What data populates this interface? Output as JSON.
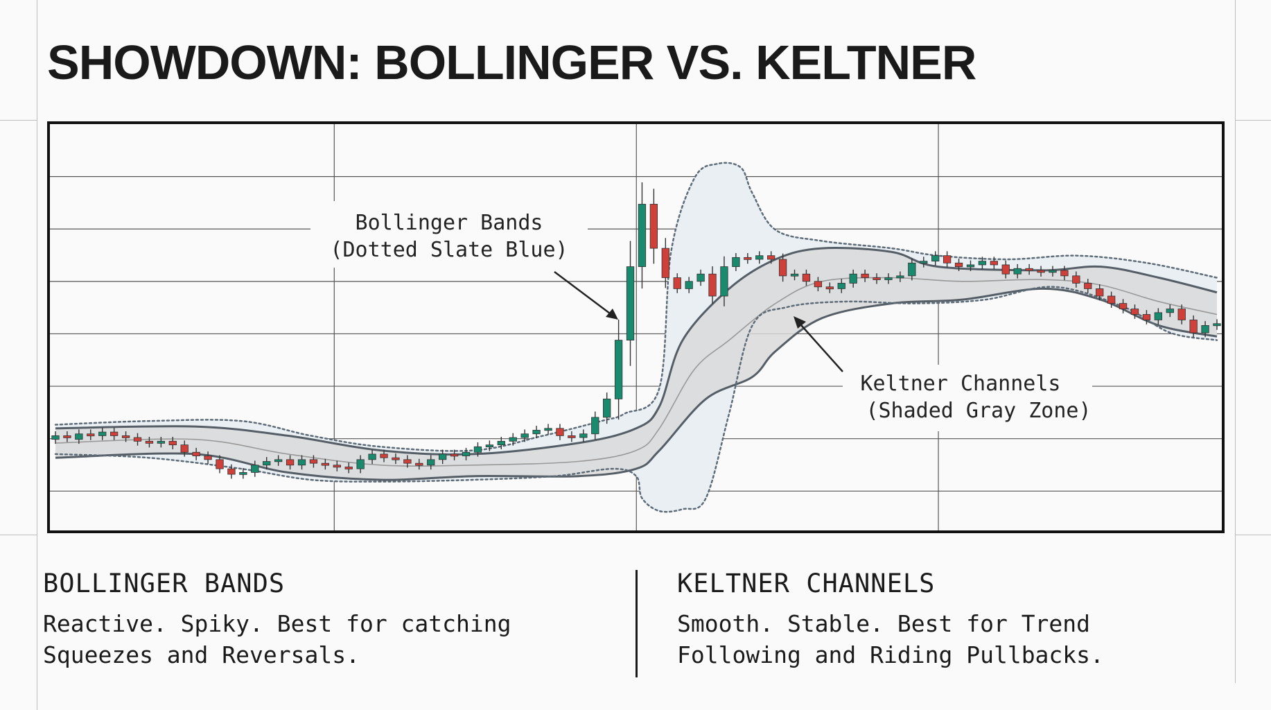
{
  "title": "SHOWDOWN: BOLLINGER VS. KELTNER",
  "annotations": {
    "bollinger": [
      "Bollinger Bands",
      "(Dotted Slate Blue)"
    ],
    "keltner": [
      "Keltner Channels",
      "(Shaded Gray Zone)"
    ]
  },
  "columns": {
    "left": {
      "heading": "BOLLINGER BANDS",
      "body": "Reactive. Spiky. Best for catching\nSqueezes and Reversals."
    },
    "right": {
      "heading": "KELTNER CHANNELS",
      "body": "Smooth. Stable. Best for Trend\nFollowing and Riding Pullbacks."
    }
  },
  "colors": {
    "up": "#1a8a6e",
    "down": "#d0403a",
    "keltner_fill": "#d9d9d9",
    "keltner_edge": "#555e66",
    "bollinger": "#5d6b78",
    "bollinger_fill": "#e9eff3",
    "grid": "#555555"
  },
  "chart_data": {
    "type": "candlestick",
    "grid": true,
    "candles": [
      {
        "o": 0.21,
        "c": 0.22
      },
      {
        "o": 0.22,
        "c": 0.215
      },
      {
        "o": 0.21,
        "c": 0.225
      },
      {
        "o": 0.225,
        "c": 0.22
      },
      {
        "o": 0.22,
        "c": 0.23
      },
      {
        "o": 0.23,
        "c": 0.22
      },
      {
        "o": 0.22,
        "c": 0.215
      },
      {
        "o": 0.215,
        "c": 0.205
      },
      {
        "o": 0.205,
        "c": 0.2
      },
      {
        "o": 0.2,
        "c": 0.205
      },
      {
        "o": 0.205,
        "c": 0.195
      },
      {
        "o": 0.195,
        "c": 0.175
      },
      {
        "o": 0.175,
        "c": 0.165
      },
      {
        "o": 0.165,
        "c": 0.155
      },
      {
        "o": 0.155,
        "c": 0.13
      },
      {
        "o": 0.13,
        "c": 0.115
      },
      {
        "o": 0.115,
        "c": 0.12
      },
      {
        "o": 0.12,
        "c": 0.14
      },
      {
        "o": 0.14,
        "c": 0.15
      },
      {
        "o": 0.15,
        "c": 0.155
      },
      {
        "o": 0.155,
        "c": 0.14
      },
      {
        "o": 0.14,
        "c": 0.155
      },
      {
        "o": 0.155,
        "c": 0.145
      },
      {
        "o": 0.145,
        "c": 0.14
      },
      {
        "o": 0.14,
        "c": 0.135
      },
      {
        "o": 0.135,
        "c": 0.13
      },
      {
        "o": 0.13,
        "c": 0.155
      },
      {
        "o": 0.155,
        "c": 0.17
      },
      {
        "o": 0.17,
        "c": 0.16
      },
      {
        "o": 0.16,
        "c": 0.155
      },
      {
        "o": 0.155,
        "c": 0.145
      },
      {
        "o": 0.145,
        "c": 0.14
      },
      {
        "o": 0.14,
        "c": 0.155
      },
      {
        "o": 0.155,
        "c": 0.17
      },
      {
        "o": 0.17,
        "c": 0.165
      },
      {
        "o": 0.165,
        "c": 0.175
      },
      {
        "o": 0.175,
        "c": 0.19
      },
      {
        "o": 0.19,
        "c": 0.195
      },
      {
        "o": 0.195,
        "c": 0.205
      },
      {
        "o": 0.205,
        "c": 0.215
      },
      {
        "o": 0.215,
        "c": 0.225
      },
      {
        "o": 0.225,
        "c": 0.235
      },
      {
        "o": 0.235,
        "c": 0.24
      },
      {
        "o": 0.24,
        "c": 0.22
      },
      {
        "o": 0.22,
        "c": 0.215
      },
      {
        "o": 0.215,
        "c": 0.225
      },
      {
        "o": 0.225,
        "c": 0.27
      },
      {
        "o": 0.27,
        "c": 0.32
      },
      {
        "o": 0.32,
        "c": 0.48
      },
      {
        "o": 0.48,
        "c": 0.68
      },
      {
        "o": 0.68,
        "c": 0.85
      },
      {
        "o": 0.85,
        "c": 0.73
      },
      {
        "o": 0.73,
        "c": 0.65
      },
      {
        "o": 0.65,
        "c": 0.62
      },
      {
        "o": 0.62,
        "c": 0.64
      },
      {
        "o": 0.64,
        "c": 0.66
      },
      {
        "o": 0.66,
        "c": 0.6
      },
      {
        "o": 0.6,
        "c": 0.68
      },
      {
        "o": 0.68,
        "c": 0.705
      },
      {
        "o": 0.705,
        "c": 0.7
      },
      {
        "o": 0.7,
        "c": 0.71
      },
      {
        "o": 0.71,
        "c": 0.7
      },
      {
        "o": 0.7,
        "c": 0.655
      },
      {
        "o": 0.655,
        "c": 0.66
      },
      {
        "o": 0.66,
        "c": 0.64
      },
      {
        "o": 0.64,
        "c": 0.625
      },
      {
        "o": 0.625,
        "c": 0.62
      },
      {
        "o": 0.62,
        "c": 0.635
      },
      {
        "o": 0.635,
        "c": 0.66
      },
      {
        "o": 0.66,
        "c": 0.65
      },
      {
        "o": 0.65,
        "c": 0.645
      },
      {
        "o": 0.645,
        "c": 0.65
      },
      {
        "o": 0.65,
        "c": 0.655
      },
      {
        "o": 0.655,
        "c": 0.69
      },
      {
        "o": 0.69,
        "c": 0.695
      },
      {
        "o": 0.695,
        "c": 0.71
      },
      {
        "o": 0.71,
        "c": 0.69
      },
      {
        "o": 0.69,
        "c": 0.68
      },
      {
        "o": 0.68,
        "c": 0.685
      },
      {
        "o": 0.685,
        "c": 0.695
      },
      {
        "o": 0.695,
        "c": 0.685
      },
      {
        "o": 0.685,
        "c": 0.66
      },
      {
        "o": 0.66,
        "c": 0.675
      },
      {
        "o": 0.675,
        "c": 0.67
      },
      {
        "o": 0.67,
        "c": 0.665
      },
      {
        "o": 0.665,
        "c": 0.67
      },
      {
        "o": 0.67,
        "c": 0.655
      },
      {
        "o": 0.655,
        "c": 0.635
      },
      {
        "o": 0.635,
        "c": 0.62
      },
      {
        "o": 0.62,
        "c": 0.6
      },
      {
        "o": 0.6,
        "c": 0.58
      },
      {
        "o": 0.58,
        "c": 0.565
      },
      {
        "o": 0.565,
        "c": 0.55
      },
      {
        "o": 0.55,
        "c": 0.535
      },
      {
        "o": 0.535,
        "c": 0.555
      },
      {
        "o": 0.555,
        "c": 0.565
      },
      {
        "o": 0.565,
        "c": 0.535
      },
      {
        "o": 0.535,
        "c": 0.5
      },
      {
        "o": 0.5,
        "c": 0.52
      },
      {
        "o": 0.52,
        "c": 0.525
      }
    ],
    "keltner": {
      "upper": [
        [
          0,
          0.24
        ],
        [
          0.12,
          0.245
        ],
        [
          0.2,
          0.22
        ],
        [
          0.28,
          0.18
        ],
        [
          0.36,
          0.17
        ],
        [
          0.45,
          0.2
        ],
        [
          0.5,
          0.24
        ],
        [
          0.52,
          0.3
        ],
        [
          0.54,
          0.48
        ],
        [
          0.58,
          0.62
        ],
        [
          0.62,
          0.7
        ],
        [
          0.66,
          0.73
        ],
        [
          0.72,
          0.72
        ],
        [
          0.76,
          0.68
        ],
        [
          0.85,
          0.67
        ],
        [
          0.9,
          0.68
        ],
        [
          0.95,
          0.65
        ],
        [
          1,
          0.61
        ]
      ],
      "lower": [
        [
          0,
          0.16
        ],
        [
          0.12,
          0.17
        ],
        [
          0.2,
          0.12
        ],
        [
          0.28,
          0.1
        ],
        [
          0.36,
          0.11
        ],
        [
          0.45,
          0.11
        ],
        [
          0.5,
          0.13
        ],
        [
          0.52,
          0.18
        ],
        [
          0.56,
          0.32
        ],
        [
          0.6,
          0.38
        ],
        [
          0.62,
          0.45
        ],
        [
          0.66,
          0.54
        ],
        [
          0.72,
          0.58
        ],
        [
          0.78,
          0.59
        ],
        [
          0.85,
          0.62
        ],
        [
          0.9,
          0.59
        ],
        [
          0.95,
          0.52
        ],
        [
          1,
          0.49
        ]
      ],
      "middle": [
        [
          0,
          0.2
        ],
        [
          0.12,
          0.21
        ],
        [
          0.2,
          0.17
        ],
        [
          0.28,
          0.14
        ],
        [
          0.36,
          0.14
        ],
        [
          0.45,
          0.15
        ],
        [
          0.5,
          0.18
        ],
        [
          0.52,
          0.24
        ],
        [
          0.55,
          0.4
        ],
        [
          0.58,
          0.48
        ],
        [
          0.62,
          0.58
        ],
        [
          0.66,
          0.64
        ],
        [
          0.72,
          0.65
        ],
        [
          0.78,
          0.64
        ],
        [
          0.85,
          0.645
        ],
        [
          0.9,
          0.63
        ],
        [
          0.95,
          0.585
        ],
        [
          1,
          0.55
        ]
      ]
    },
    "bollinger": {
      "upper": [
        [
          0,
          0.25
        ],
        [
          0.08,
          0.26
        ],
        [
          0.16,
          0.26
        ],
        [
          0.22,
          0.22
        ],
        [
          0.28,
          0.19
        ],
        [
          0.36,
          0.18
        ],
        [
          0.42,
          0.22
        ],
        [
          0.47,
          0.26
        ],
        [
          0.49,
          0.28
        ],
        [
          0.52,
          0.35
        ],
        [
          0.53,
          0.72
        ],
        [
          0.55,
          0.92
        ],
        [
          0.57,
          0.96
        ],
        [
          0.59,
          0.95
        ],
        [
          0.6,
          0.88
        ],
        [
          0.62,
          0.78
        ],
        [
          0.66,
          0.75
        ],
        [
          0.72,
          0.73
        ],
        [
          0.76,
          0.71
        ],
        [
          0.82,
          0.7
        ],
        [
          0.88,
          0.71
        ],
        [
          0.94,
          0.69
        ],
        [
          1,
          0.65
        ]
      ],
      "lower": [
        [
          0,
          0.17
        ],
        [
          0.08,
          0.16
        ],
        [
          0.16,
          0.13
        ],
        [
          0.22,
          0.1
        ],
        [
          0.28,
          0.095
        ],
        [
          0.36,
          0.1
        ],
        [
          0.43,
          0.11
        ],
        [
          0.48,
          0.13
        ],
        [
          0.5,
          0.11
        ],
        [
          0.505,
          0.05
        ],
        [
          0.52,
          0.015
        ],
        [
          0.54,
          0.02
        ],
        [
          0.56,
          0.05
        ],
        [
          0.58,
          0.28
        ],
        [
          0.6,
          0.52
        ],
        [
          0.63,
          0.57
        ],
        [
          0.68,
          0.585
        ],
        [
          0.74,
          0.58
        ],
        [
          0.8,
          0.59
        ],
        [
          0.86,
          0.625
        ],
        [
          0.92,
          0.57
        ],
        [
          0.96,
          0.5
        ],
        [
          1,
          0.48
        ]
      ]
    }
  }
}
